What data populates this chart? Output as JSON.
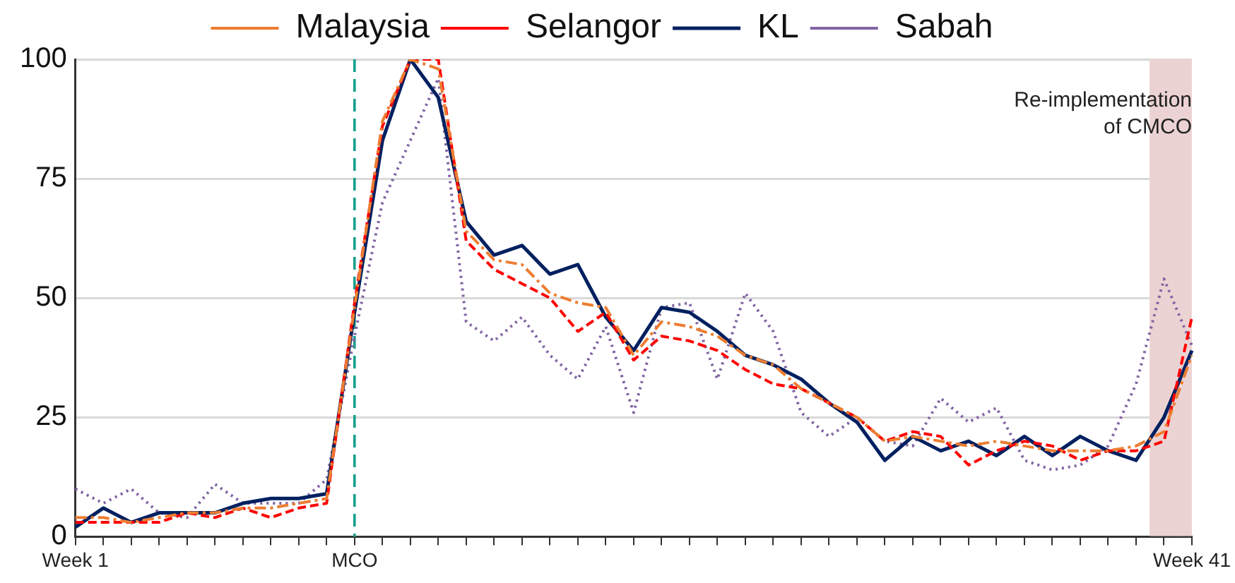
{
  "chart_data": {
    "type": "line",
    "categories": [
      "Week 1",
      null,
      null,
      null,
      null,
      null,
      null,
      null,
      null,
      null,
      "MCO",
      null,
      null,
      null,
      null,
      null,
      null,
      null,
      null,
      null,
      null,
      null,
      null,
      null,
      null,
      null,
      null,
      null,
      null,
      null,
      null,
      null,
      null,
      null,
      null,
      null,
      null,
      null,
      null,
      null,
      "Week 41"
    ],
    "ylim": [
      0,
      100
    ],
    "yticks": [
      0,
      25,
      50,
      75,
      100
    ],
    "grid": "y",
    "legend": "top",
    "marker": "none",
    "series": [
      {
        "name": "Malaysia",
        "color": "#ed7d31",
        "line_style": "dashdot",
        "values": [
          4,
          4,
          3,
          4,
          5,
          5,
          6,
          6,
          7,
          8,
          48,
          87,
          100,
          98,
          64,
          58,
          57,
          51,
          49,
          48,
          38,
          45,
          44,
          42,
          38,
          36,
          31,
          28,
          25,
          20,
          21,
          20,
          19,
          20,
          19,
          18,
          18,
          18,
          19,
          22,
          38
        ]
      },
      {
        "name": "Selangor",
        "color": "#ff0000",
        "line_style": "dashed",
        "values": [
          3,
          3,
          3,
          3,
          5,
          4,
          6,
          4,
          6,
          7,
          49,
          86,
          100,
          100,
          62,
          56,
          53,
          50,
          43,
          47,
          37,
          42,
          41,
          39,
          35,
          32,
          31,
          28,
          25,
          20,
          22,
          21,
          15,
          18,
          20,
          19,
          16,
          18,
          18,
          20,
          46
        ]
      },
      {
        "name": "KL",
        "color": "#002060",
        "line_style": "solid",
        "values": [
          2,
          6,
          3,
          5,
          5,
          5,
          7,
          8,
          8,
          9,
          47,
          83,
          100,
          92,
          66,
          59,
          61,
          55,
          57,
          46,
          39,
          48,
          47,
          43,
          38,
          36,
          33,
          28,
          24,
          16,
          21,
          18,
          20,
          17,
          21,
          17,
          21,
          18,
          16,
          25,
          39
        ]
      },
      {
        "name": "Sabah",
        "color": "#8064a2",
        "line_style": "dotted",
        "values": [
          10,
          7,
          10,
          5,
          4,
          11,
          7,
          7,
          7,
          12,
          42,
          70,
          83,
          96,
          45,
          41,
          46,
          38,
          33,
          44,
          26,
          48,
          49,
          33,
          51,
          43,
          26,
          21,
          25,
          20,
          19,
          29,
          24,
          27,
          16,
          14,
          15,
          19,
          32,
          54,
          40
        ]
      },
      {
        "type": "bar",
        "color": "#ecd3d3",
        "values": [
          null,
          null,
          null,
          null,
          null,
          null,
          null,
          null,
          null,
          null,
          null,
          null,
          null,
          null,
          null,
          null,
          null,
          null,
          null,
          null,
          null,
          null,
          null,
          null,
          null,
          null,
          null,
          null,
          null,
          null,
          null,
          null,
          null,
          null,
          null,
          null,
          null,
          null,
          null,
          100,
          100
        ]
      }
    ],
    "annotations": [
      "Re-implementation of CMCO"
    ],
    "ref_lines": [
      {
        "axis": "x",
        "value": "MCO",
        "color": "#17a08c",
        "line_style": "dashed"
      }
    ]
  }
}
